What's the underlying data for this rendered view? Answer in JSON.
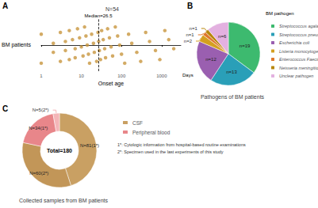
{
  "chart_data": [
    {
      "type": "scatter",
      "panel": "A",
      "title": "N=54",
      "y_label": "BM patients",
      "x_label": "Onset age",
      "x_unit": "Days",
      "values": [
        1,
        1,
        2,
        2,
        3,
        3,
        4,
        4,
        5,
        5,
        6,
        7,
        7,
        8,
        9,
        10,
        11,
        12,
        13,
        14,
        15,
        16,
        18,
        20,
        21,
        24,
        26,
        27,
        28,
        30,
        32,
        35,
        38,
        40,
        45,
        50,
        55,
        60,
        70,
        80,
        90,
        100,
        120,
        150,
        180,
        240,
        300,
        400,
        500,
        700,
        900,
        1200,
        1500,
        2000
      ],
      "log": "x",
      "xlim": [
        1,
        3000
      ],
      "xticks": [
        1,
        10,
        100,
        1000
      ],
      "color": "#c8963e",
      "grid": false,
      "annotations": [
        {
          "text": "Median=26.5",
          "x": 26.5
        }
      ]
    },
    {
      "type": "pie",
      "panel": "B",
      "title": "Pathogens of BM patients",
      "legend_title": "BM pathogen",
      "legend": "right",
      "categories": [
        "Streptococcus agalactiae",
        "Streptococcus pneumoniae",
        "Escherichia coli",
        "Listeria monocytogenes",
        "Enterococcus Faecium",
        "Neisseria meningitidis",
        "Unclear pathogen"
      ],
      "values": [
        19,
        13,
        12,
        2,
        1,
        1,
        6
      ],
      "value_labels": [
        "n=19",
        "n=13",
        "n=12",
        "n=2",
        "n=1",
        "n=1",
        "n=6"
      ],
      "colors": [
        "#3dba6f",
        "#2a9fb8",
        "#9a5fb0",
        "#d4a020",
        "#e0782c",
        "#b8860b",
        "#e3b1e0"
      ],
      "data_labels": true
    },
    {
      "type": "donut",
      "panel": "C",
      "title": "Collected samples from BM patients",
      "legend": "top-right",
      "center_text": "Total=180",
      "categories": [
        "CSF",
        "CSF",
        "Peripheral blood",
        "Peripheral blood"
      ],
      "values": [
        81,
        60,
        34,
        5
      ],
      "value_labels": [
        "N=81(1*)",
        "N=60(2*)",
        "N=34(1*)",
        "N=5(2*)"
      ],
      "colors": [
        "#c9a063",
        "#c29658",
        "#e8868a",
        "#f4b6b8"
      ],
      "footnotes": [
        "1*: Cytologic information from hospital-based routine examinations",
        "2*: Specimen used in the last experiments of this study"
      ],
      "data_labels": true
    }
  ]
}
